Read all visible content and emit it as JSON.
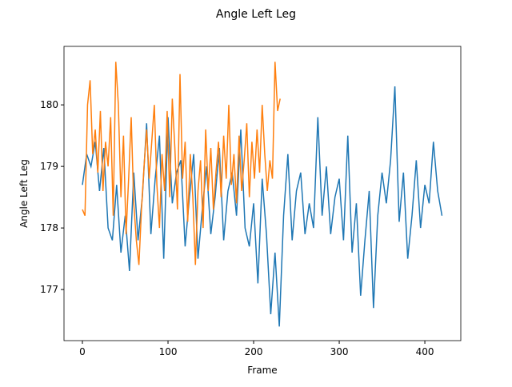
{
  "chart_data": {
    "type": "line",
    "title": "Angle Left Leg",
    "x_label": "Frame",
    "y_label": "Angle Left Leg",
    "xlim": [
      -21.5,
      442
    ],
    "xticks": [
      0,
      100,
      200,
      300,
      400
    ],
    "ylim": [
      176.17,
      180.95
    ],
    "yticks": [
      177,
      178,
      179,
      180
    ],
    "series": [
      {
        "color": "#1f77b4",
        "x": [
          0,
          5,
          10,
          15,
          20,
          25,
          30,
          35,
          40,
          45,
          50,
          55,
          60,
          65,
          70,
          75,
          80,
          85,
          90,
          95,
          100,
          105,
          110,
          115,
          120,
          125,
          130,
          135,
          140,
          145,
          150,
          155,
          160,
          165,
          170,
          175,
          180,
          185,
          190,
          195,
          200,
          205,
          210,
          215,
          220,
          225,
          230,
          235,
          240,
          245,
          250,
          255,
          260,
          265,
          270,
          275,
          280,
          285,
          290,
          295,
          300,
          305,
          310,
          315,
          320,
          325,
          330,
          335,
          340,
          345,
          350,
          355,
          360,
          365,
          370,
          375,
          380,
          385,
          390,
          395,
          400,
          405,
          410,
          415,
          420
        ],
        "values": [
          178.7,
          179.2,
          179.0,
          179.4,
          178.6,
          179.3,
          178.0,
          177.8,
          178.7,
          177.6,
          178.2,
          177.3,
          178.9,
          177.8,
          178.5,
          179.7,
          177.9,
          178.8,
          179.5,
          177.5,
          179.8,
          178.4,
          178.9,
          179.1,
          177.7,
          178.5,
          179.2,
          177.5,
          178.3,
          179.0,
          177.9,
          178.5,
          179.3,
          177.8,
          178.6,
          178.9,
          178.2,
          179.6,
          178.0,
          177.7,
          178.4,
          177.1,
          178.8,
          177.9,
          176.6,
          177.6,
          176.4,
          178.2,
          179.2,
          177.8,
          178.6,
          178.9,
          177.9,
          178.4,
          178.0,
          179.8,
          178.2,
          179.0,
          177.9,
          178.5,
          178.8,
          177.8,
          179.5,
          177.6,
          178.4,
          176.9,
          177.8,
          178.6,
          176.7,
          178.2,
          178.9,
          178.4,
          179.1,
          180.3,
          178.1,
          178.9,
          177.5,
          178.2,
          179.1,
          178.0,
          178.7,
          178.4,
          179.4,
          178.6,
          178.2
        ]
      },
      {
        "color": "#ff7f0e",
        "x": [
          0,
          3,
          6,
          9,
          12,
          15,
          18,
          21,
          24,
          27,
          30,
          33,
          36,
          39,
          42,
          45,
          48,
          51,
          54,
          57,
          60,
          63,
          66,
          69,
          72,
          75,
          78,
          81,
          84,
          87,
          90,
          93,
          96,
          99,
          102,
          105,
          108,
          111,
          114,
          117,
          120,
          123,
          126,
          129,
          132,
          135,
          138,
          141,
          144,
          147,
          150,
          153,
          156,
          159,
          162,
          165,
          168,
          171,
          174,
          177,
          180,
          183,
          186,
          189,
          192,
          195,
          198,
          201,
          204,
          207,
          210,
          213,
          216,
          219,
          222,
          225,
          228,
          231
        ],
        "values": [
          178.3,
          178.2,
          180.0,
          180.4,
          179.2,
          179.6,
          178.9,
          179.9,
          178.6,
          179.4,
          179.0,
          179.8,
          178.2,
          180.7,
          180.0,
          178.5,
          179.5,
          177.9,
          178.8,
          179.8,
          178.4,
          177.8,
          177.4,
          178.3,
          179.0,
          179.6,
          178.8,
          179.4,
          180.0,
          178.7,
          178.0,
          179.2,
          178.6,
          179.9,
          178.5,
          180.1,
          179.3,
          178.3,
          180.5,
          178.8,
          179.4,
          178.1,
          179.2,
          178.5,
          177.4,
          178.6,
          179.1,
          178.0,
          179.6,
          178.6,
          179.3,
          178.3,
          178.9,
          179.4,
          178.5,
          179.5,
          178.8,
          180.0,
          178.7,
          179.2,
          178.4,
          179.5,
          178.6,
          179.1,
          179.7,
          178.5,
          179.4,
          178.8,
          179.6,
          178.9,
          180.0,
          179.2,
          178.6,
          179.1,
          178.8,
          180.7,
          179.9,
          180.1
        ]
      }
    ]
  }
}
